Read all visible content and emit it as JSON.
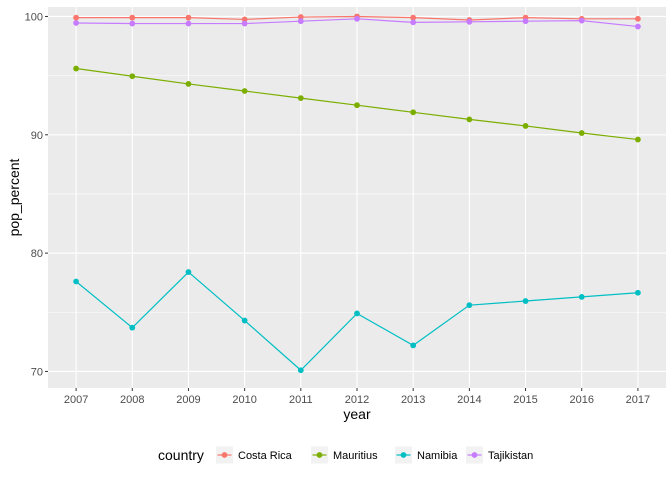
{
  "chart_data": {
    "type": "line",
    "title": "",
    "xlabel": "year",
    "ylabel": "pop_percent",
    "x": [
      2007,
      2008,
      2009,
      2010,
      2011,
      2012,
      2013,
      2014,
      2015,
      2016,
      2017
    ],
    "xlim": [
      2006.5,
      2017.5
    ],
    "ylim": [
      68.6,
      100.8
    ],
    "yticks": [
      70,
      80,
      90,
      100
    ],
    "grid": true,
    "legend": {
      "title": "country",
      "placement": "bottom"
    },
    "series": [
      {
        "name": "Costa Rica",
        "color": "#F8766D",
        "values": [
          99.9,
          99.9,
          99.9,
          99.75,
          99.95,
          100.0,
          99.9,
          99.7,
          99.9,
          99.8,
          99.8
        ]
      },
      {
        "name": "Mauritius",
        "color": "#7CAE00",
        "values": [
          95.6,
          94.95,
          94.3,
          93.7,
          93.1,
          92.5,
          91.9,
          91.3,
          90.75,
          90.15,
          89.6
        ]
      },
      {
        "name": "Namibia",
        "color": "#00BFC4",
        "values": [
          77.6,
          73.7,
          78.4,
          74.3,
          70.1,
          74.9,
          72.2,
          75.6,
          75.95,
          76.3,
          76.65
        ]
      },
      {
        "name": "Tajikistan",
        "color": "#C77CFF",
        "values": [
          99.45,
          99.4,
          99.4,
          99.4,
          99.6,
          99.8,
          99.5,
          99.55,
          99.6,
          99.65,
          99.15
        ]
      }
    ]
  }
}
